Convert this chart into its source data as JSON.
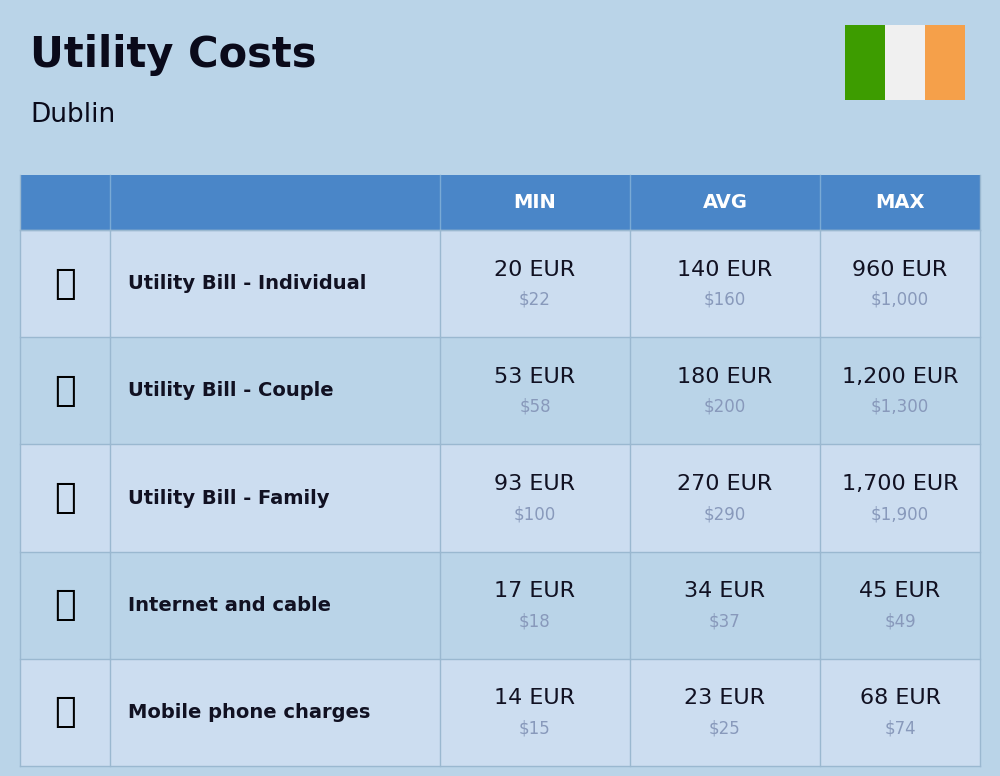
{
  "title": "Utility Costs",
  "subtitle": "Dublin",
  "background_color": "#bad4e8",
  "header_color": "#4a86c8",
  "header_text_color": "#ffffff",
  "row_color_light": "#ccddf0",
  "row_color_dark": "#bad4e8",
  "cell_text_color": "#111122",
  "usd_text_color": "#8899bb",
  "header_labels": [
    "MIN",
    "AVG",
    "MAX"
  ],
  "rows": [
    {
      "label": "Utility Bill - Individual",
      "min_eur": "20 EUR",
      "min_usd": "$22",
      "avg_eur": "140 EUR",
      "avg_usd": "$160",
      "max_eur": "960 EUR",
      "max_usd": "$1,000"
    },
    {
      "label": "Utility Bill - Couple",
      "min_eur": "53 EUR",
      "min_usd": "$58",
      "avg_eur": "180 EUR",
      "avg_usd": "$200",
      "max_eur": "1,200 EUR",
      "max_usd": "$1,300"
    },
    {
      "label": "Utility Bill - Family",
      "min_eur": "93 EUR",
      "min_usd": "$100",
      "avg_eur": "270 EUR",
      "avg_usd": "$290",
      "max_eur": "1,700 EUR",
      "max_usd": "$1,900"
    },
    {
      "label": "Internet and cable",
      "min_eur": "17 EUR",
      "min_usd": "$18",
      "avg_eur": "34 EUR",
      "avg_usd": "$37",
      "max_eur": "45 EUR",
      "max_usd": "$49"
    },
    {
      "label": "Mobile phone charges",
      "min_eur": "14 EUR",
      "min_usd": "$15",
      "avg_eur": "23 EUR",
      "avg_usd": "$25",
      "max_eur": "68 EUR",
      "max_usd": "$74"
    }
  ],
  "flag_green": "#3d9c00",
  "flag_white": "#f0f0f0",
  "flag_orange": "#f5a04a",
  "title_fontsize": 30,
  "subtitle_fontsize": 19,
  "header_fontsize": 14,
  "label_fontsize": 14,
  "eur_fontsize": 16,
  "usd_fontsize": 12
}
